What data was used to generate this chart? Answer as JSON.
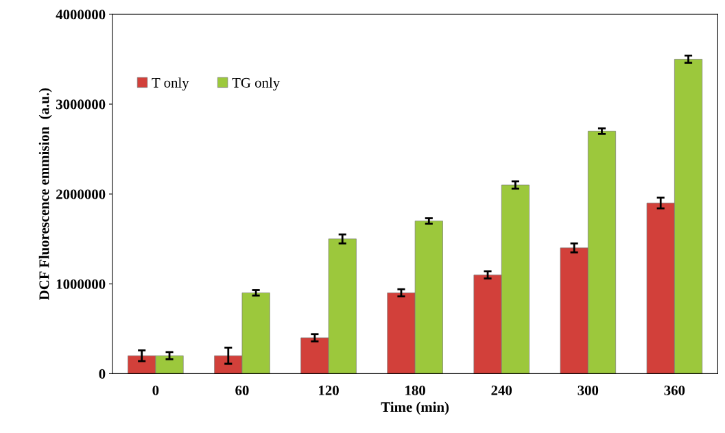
{
  "chart_data": {
    "type": "bar",
    "xlabel": "Time (min)",
    "ylabel": "DCF Fluorescence emmision  (a.u.)",
    "categories": [
      "0",
      "60",
      "120",
      "180",
      "240",
      "300",
      "360"
    ],
    "series": [
      {
        "name": "T only",
        "color": "#d2403a",
        "values": [
          200000,
          200000,
          400000,
          900000,
          1100000,
          1400000,
          1900000
        ],
        "errors": [
          60000,
          90000,
          40000,
          40000,
          40000,
          50000,
          60000
        ]
      },
      {
        "name": "TG only",
        "color": "#9cc83c",
        "values": [
          200000,
          900000,
          1500000,
          1700000,
          2100000,
          2700000,
          3500000
        ],
        "errors": [
          40000,
          30000,
          50000,
          30000,
          40000,
          30000,
          40000
        ]
      }
    ],
    "ylim": [
      0,
      4000000
    ],
    "yticks": [
      0,
      1000000,
      2000000,
      3000000,
      4000000
    ],
    "grid": false,
    "legend": "top left"
  }
}
